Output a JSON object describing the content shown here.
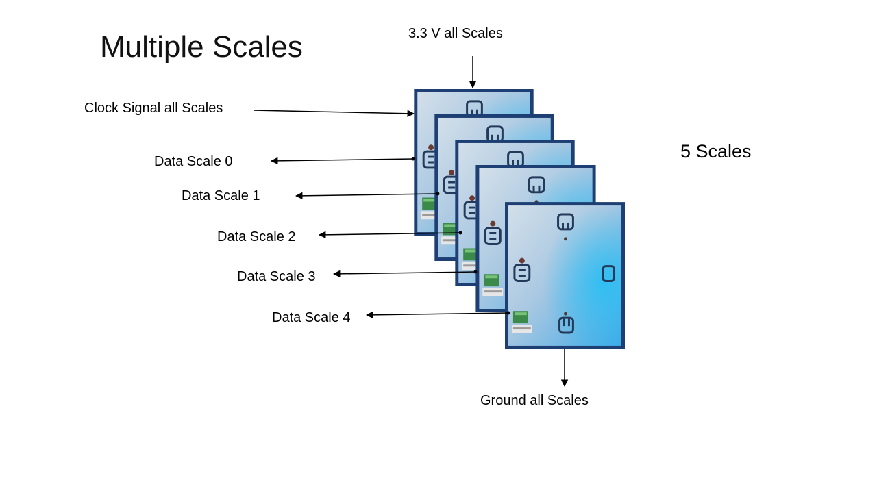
{
  "slide": {
    "title": "Multiple Scales",
    "count_label": "5 Scales"
  },
  "labels": {
    "power": "3.3 V all Scales",
    "clock": "Clock Signal all Scales",
    "ground": "Ground all Scales",
    "data": [
      "Data Scale 0",
      "Data Scale 1",
      "Data Scale 2",
      "Data Scale 3",
      "Data Scale 4"
    ]
  },
  "colors": {
    "frame": "#1d3f73",
    "plate_light": "#c9dbea",
    "plate_mid": "#7fb0dc",
    "plate_glow": "#1fb3ee",
    "socket": "#243a5a",
    "pcb": "#3c8a4a"
  }
}
